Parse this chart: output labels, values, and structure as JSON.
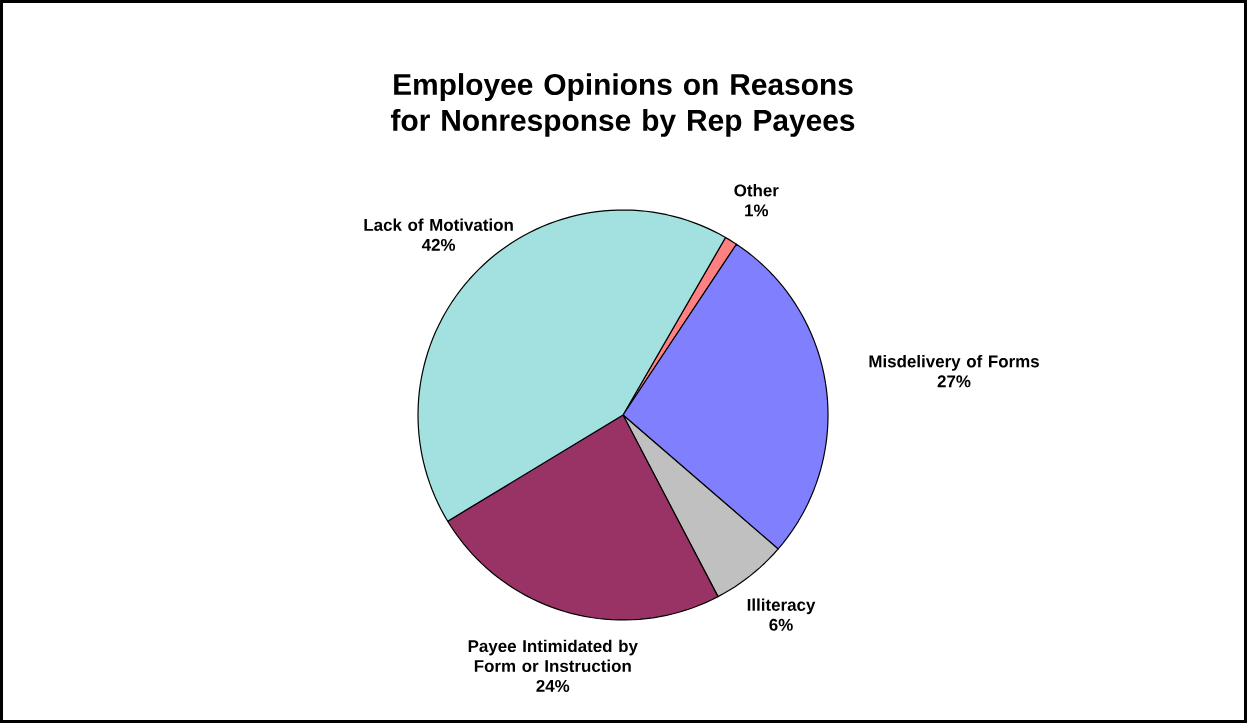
{
  "chart_data": {
    "type": "pie",
    "title": "Employee Opinions on Reasons for Nonresponse by Rep Payees",
    "categories": [
      "Other",
      "Misdelivery of Forms",
      "Illiteracy",
      "Payee Intimidated by Form or Instruction",
      "Lack of Motivation"
    ],
    "values": [
      1,
      27,
      6,
      24,
      42
    ],
    "colors": [
      "#ff8080",
      "#8080ff",
      "#c0c0c0",
      "#993366",
      "#a3e0e0"
    ],
    "value_labels": [
      "1%",
      "27%",
      "6%",
      "24%",
      "42%"
    ]
  }
}
